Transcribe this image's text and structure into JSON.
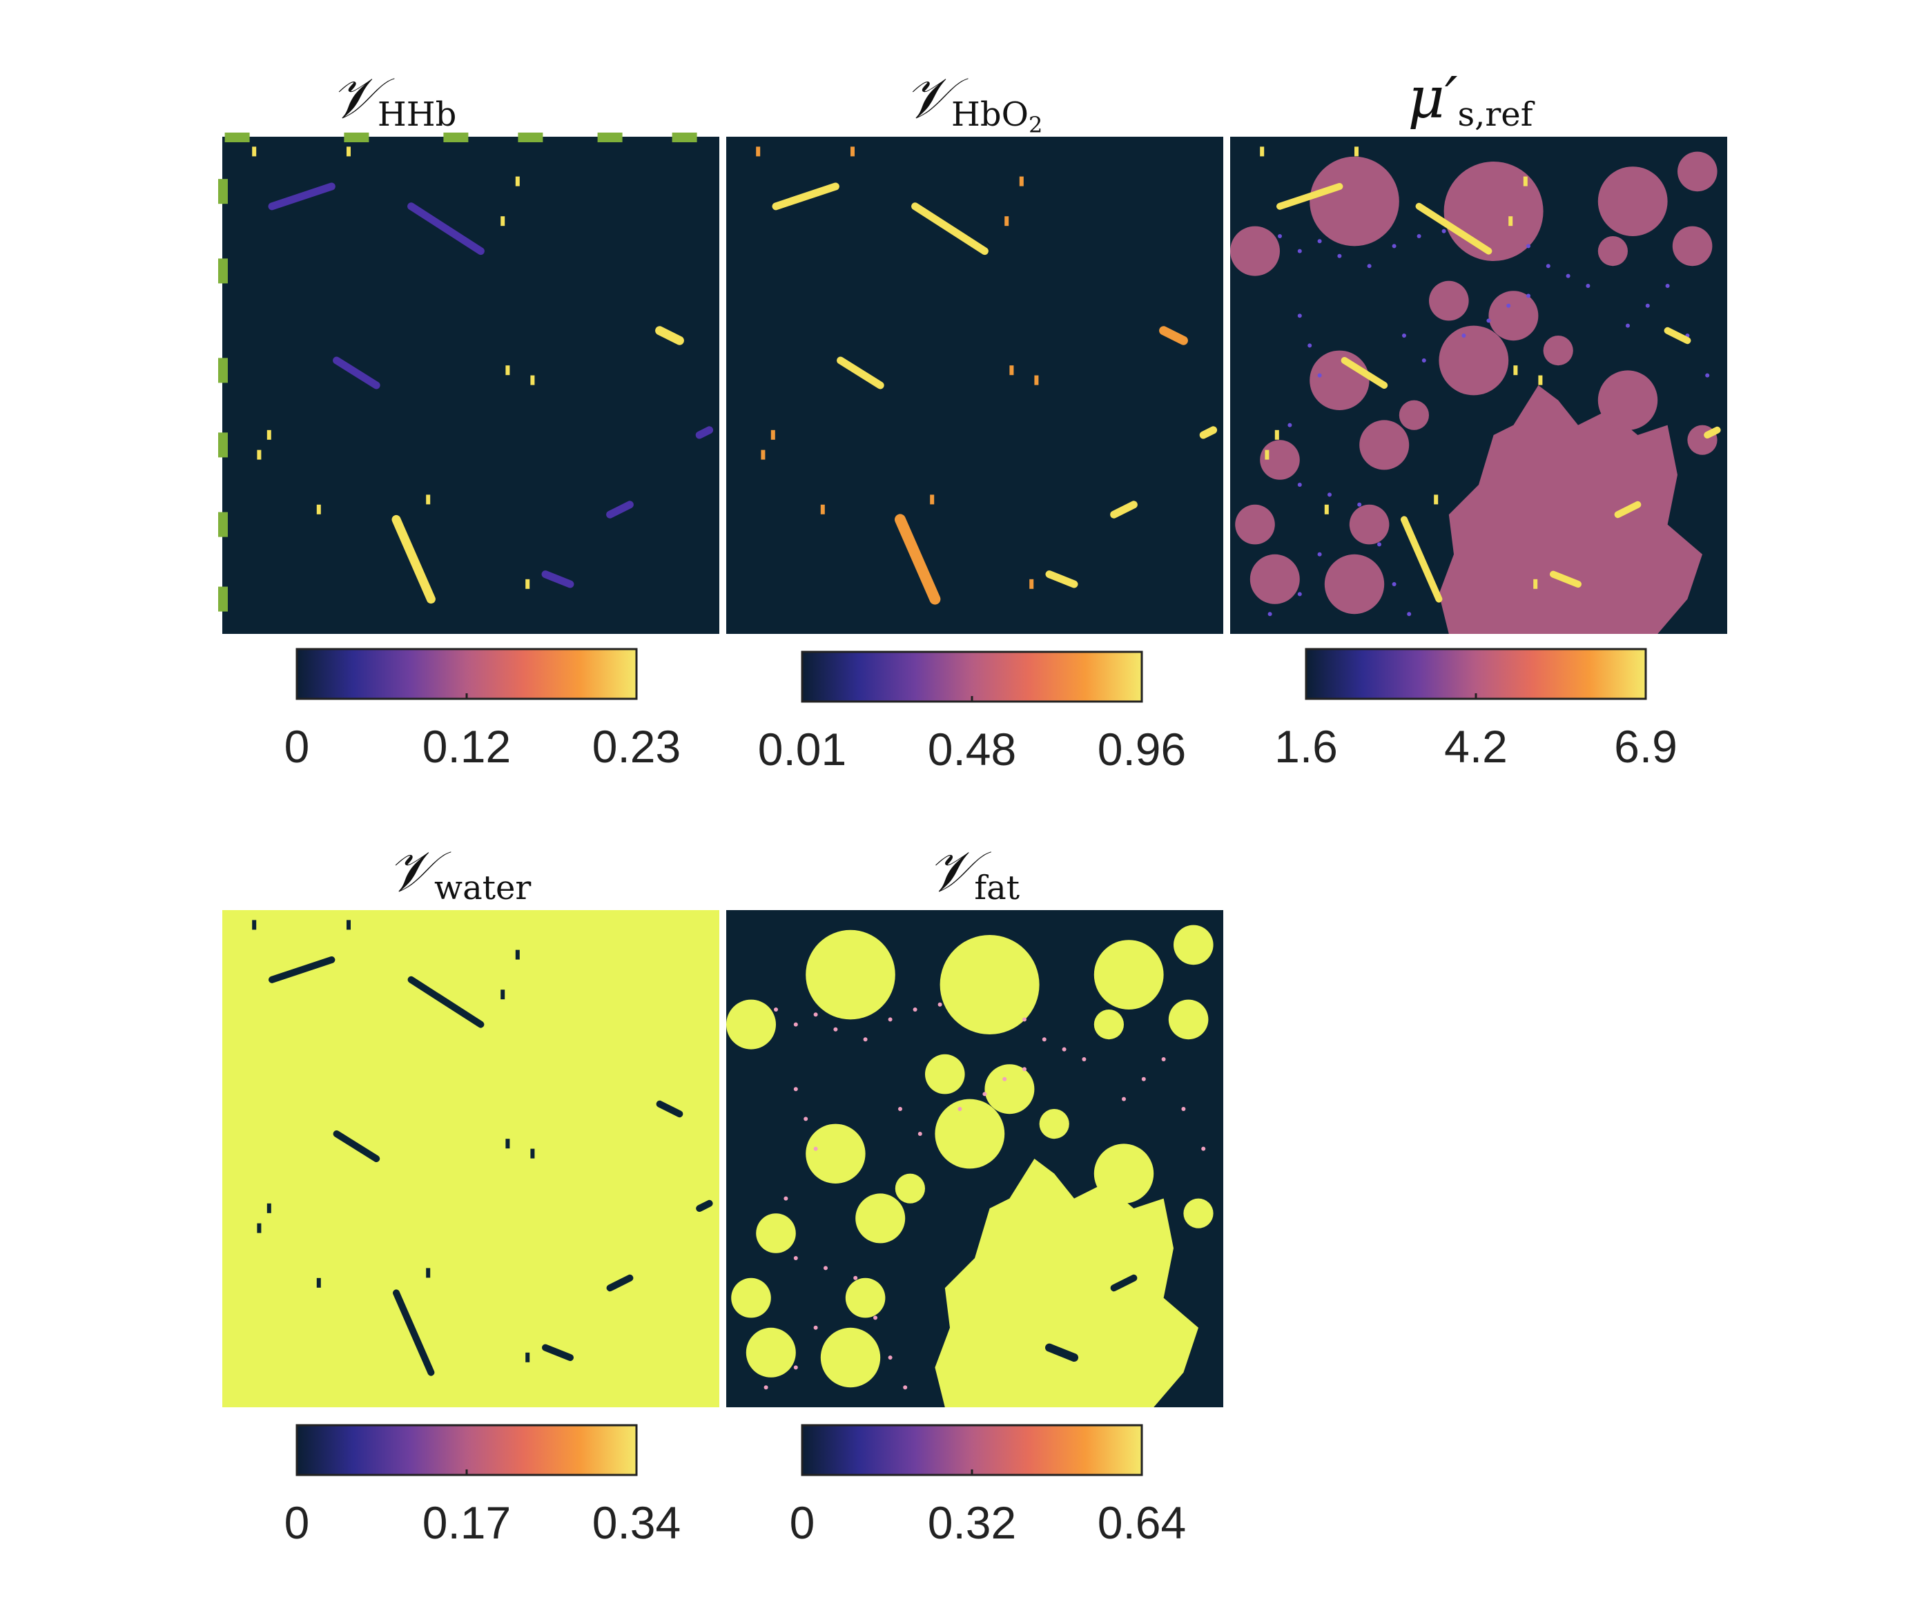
{
  "colors": {
    "background": "#0a2233",
    "water_fill": "#e8f55a",
    "fat_fill": "#e8f55a",
    "scatter_fill": "#a85a7f",
    "vessel_bright": "#f5e25a",
    "vessel_orange": "#f29a3a",
    "vessel_purple": "#4b33a8",
    "dot_pink": "#f0a0c0",
    "dot_purple": "#6b4fd8",
    "boundary_dash": "#7fb03a"
  },
  "colormap": [
    "#0b1e33",
    "#2f2c8f",
    "#6e3f9e",
    "#b55c84",
    "#e66d5a",
    "#f79a3b",
    "#f5e86a"
  ],
  "chart_data": [
    {
      "type": "heatmap",
      "panel": "top-left",
      "title": "𝒱",
      "title_sub": "HHb",
      "colorbar": {
        "ticks": [
          "0",
          "0.12",
          "0.23"
        ],
        "range": [
          0,
          0.23
        ]
      },
      "boundary_dash": true
    },
    {
      "type": "heatmap",
      "panel": "top-middle",
      "title": "𝒱",
      "title_sub": "HbO",
      "title_sub2": "2",
      "colorbar": {
        "ticks": [
          "0.01",
          "0.48",
          "0.96"
        ],
        "range": [
          0.01,
          0.96
        ]
      }
    },
    {
      "type": "heatmap",
      "panel": "top-right",
      "title": "μ′",
      "title_sub": "s,ref",
      "colorbar": {
        "ticks": [
          "1.6",
          "4.2",
          "6.9"
        ],
        "range": [
          1.6,
          6.9
        ]
      }
    },
    {
      "type": "heatmap",
      "panel": "bottom-left",
      "title": "𝒱",
      "title_sub": "water",
      "colorbar": {
        "ticks": [
          "0",
          "0.17",
          "0.34"
        ],
        "range": [
          0,
          0.34
        ]
      }
    },
    {
      "type": "heatmap",
      "panel": "bottom-middle",
      "title": "𝒱",
      "title_sub": "fat",
      "colorbar": {
        "ticks": [
          "0",
          "0.32",
          "0.64"
        ],
        "range": [
          0,
          0.64
        ]
      }
    }
  ]
}
